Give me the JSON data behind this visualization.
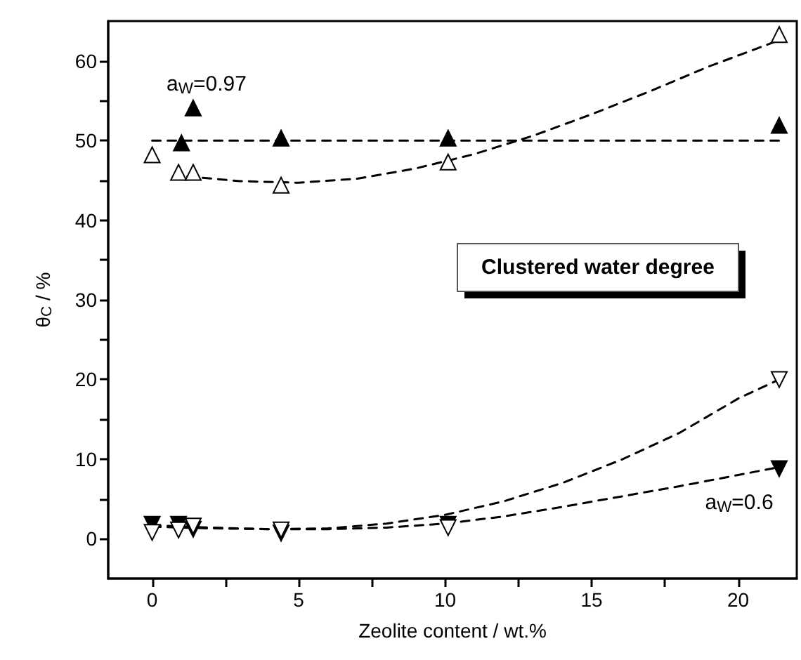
{
  "chart_data": {
    "type": "scatter",
    "xlabel": "Zeolite content / wt.%",
    "ylabel": "θ$_{C}$ / %",
    "xlim": [
      -1.5,
      22
    ],
    "xticks": [
      0,
      {
        "value": 2.5,
        "label": null
      },
      5,
      {
        "value": 7.5,
        "label": null
      },
      10,
      {
        "value": 12.5,
        "label": null
      },
      15,
      {
        "value": 17.5,
        "label": null
      },
      20
    ],
    "ylim": [
      -5,
      65
    ],
    "yticks": [
      0,
      {
        "value": 5,
        "label": null
      },
      10,
      {
        "value": 15,
        "label": null
      },
      20,
      {
        "value": 25,
        "label": null
      },
      30,
      {
        "value": 35,
        "label": null
      },
      40,
      {
        "value": 45,
        "label": null
      },
      50,
      {
        "value": 55,
        "label": null
      },
      60
    ],
    "grid": false,
    "annotations": [
      "a$_{W}$=0.97",
      "a$_{W}$=0.6",
      "Clustered water degree"
    ],
    "series": [
      {
        "type": "line",
        "marker": "none",
        "line_style": "dashed",
        "color": "#000000",
        "x": [
          0,
          21.4
        ],
        "values": [
          50,
          50
        ]
      },
      {
        "type": "line",
        "marker": "none",
        "line_style": "dashed",
        "color": "#000000",
        "x": [
          1.2,
          3,
          5,
          7,
          9,
          11,
          13,
          15,
          17,
          19,
          21.4
        ],
        "values": [
          45.5,
          44.9,
          44.7,
          45.2,
          46.5,
          48.3,
          50.6,
          53.3,
          56.2,
          59.3,
          62.6
        ]
      },
      {
        "type": "line",
        "marker": "none",
        "line_style": "dashed",
        "color": "#000000",
        "x": [
          0,
          2,
          4,
          6,
          8,
          10,
          12,
          14,
          16,
          18,
          20,
          21.4
        ],
        "values": [
          1.5,
          1.3,
          1.2,
          1.3,
          1.9,
          3.0,
          4.7,
          7.0,
          9.9,
          13.3,
          17.6,
          20
        ]
      },
      {
        "type": "line",
        "marker": "none",
        "line_style": "dashed",
        "color": "#000000",
        "x": [
          0,
          2,
          4,
          6,
          8,
          10,
          12,
          14,
          16,
          18,
          20,
          21.4
        ],
        "values": [
          1.7,
          1.4,
          1.2,
          1.2,
          1.4,
          1.9,
          2.8,
          4.0,
          5.3,
          6.6,
          8.0,
          9.0
        ]
      },
      {
        "marker": "triangle",
        "color": "#000000",
        "x": [
          1.0,
          1.4,
          4.4,
          10.1,
          21.4
        ],
        "values": [
          49.7,
          54.1,
          50.3,
          50.3,
          51.9
        ]
      },
      {
        "marker": "triangle",
        "color": "#ffffff",
        "x": [
          0,
          0.9,
          1.4,
          4.4,
          10.1,
          21.4
        ],
        "values": [
          48.2,
          46.0,
          46.0,
          44.4,
          47.3,
          63.3
        ]
      },
      {
        "marker": "triangle-down",
        "color": "#000000",
        "x": [
          0,
          0.9,
          1.4,
          4.4,
          10.1,
          21.4
        ],
        "values": [
          1.8,
          1.8,
          1.2,
          0.7,
          1.8,
          8.8
        ]
      },
      {
        "marker": "triangle-down",
        "color": "#ffffff",
        "x": [
          0,
          0.9,
          1.4,
          4.4,
          10.1,
          21.4
        ],
        "values": [
          0.8,
          1.1,
          1.6,
          1.1,
          1.4,
          20
        ]
      }
    ]
  }
}
